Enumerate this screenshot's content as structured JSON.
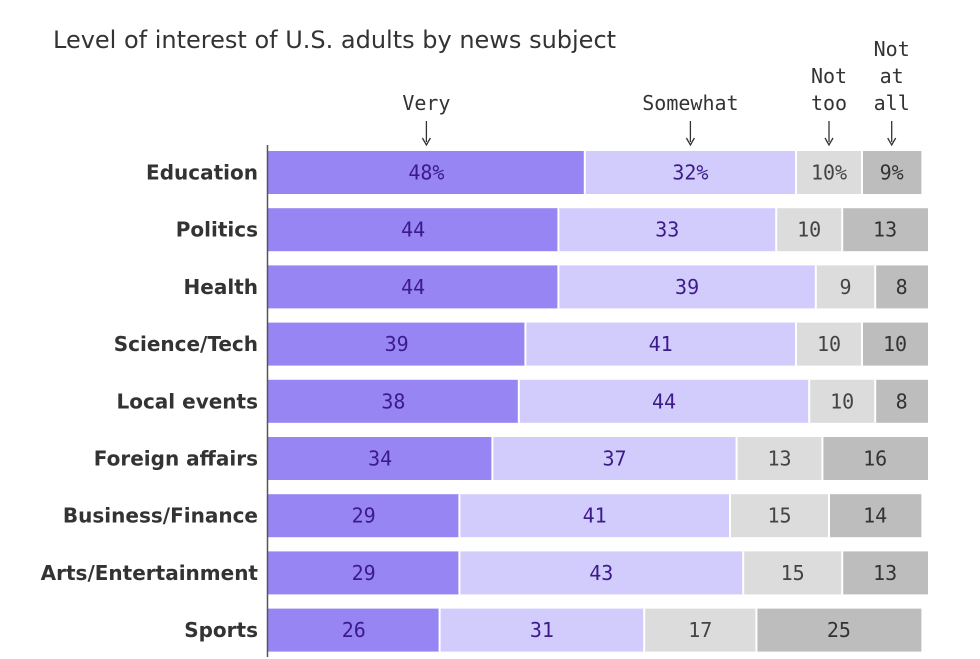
{
  "chart_data": {
    "type": "bar",
    "orientation": "horizontal",
    "stacked": true,
    "title": "Level of interest of U.S. adults by news subject",
    "categories": [
      "Education",
      "Politics",
      "Health",
      "Science/Tech",
      "Local events",
      "Foreign affairs",
      "Business/Finance",
      "Arts/Entertainment",
      "Sports"
    ],
    "series": [
      {
        "name": "Very",
        "header_lines": [
          "Very"
        ],
        "color": "#9685f2",
        "label_color": "#3d1a8a",
        "values": [
          48,
          44,
          44,
          39,
          38,
          34,
          29,
          29,
          26
        ],
        "labels": [
          "48%",
          "44",
          "44",
          "39",
          "38",
          "34",
          "29",
          "29",
          "26"
        ]
      },
      {
        "name": "Somewhat",
        "header_lines": [
          "Somewhat"
        ],
        "color": "#d1ccfc",
        "label_color": "#3d1a8a",
        "values": [
          32,
          33,
          39,
          41,
          44,
          37,
          41,
          43,
          31
        ],
        "labels": [
          "32%",
          "33",
          "39",
          "41",
          "44",
          "37",
          "41",
          "43",
          "31"
        ]
      },
      {
        "name": "Not too",
        "header_lines": [
          "Not",
          "too"
        ],
        "color": "#dcdcdc",
        "label_color": "#444444",
        "values": [
          10,
          10,
          9,
          10,
          10,
          13,
          15,
          15,
          17
        ],
        "labels": [
          "10%",
          "10",
          "9",
          "10",
          "10",
          "13",
          "15",
          "15",
          "17"
        ]
      },
      {
        "name": "Not at all",
        "header_lines": [
          "Not",
          "at",
          "all"
        ],
        "color": "#bdbdbd",
        "label_color": "#333333",
        "values": [
          9,
          13,
          8,
          10,
          8,
          16,
          14,
          13,
          25
        ],
        "labels": [
          "9%",
          "13",
          "8",
          "10",
          "8",
          "16",
          "14",
          "13",
          "25"
        ]
      }
    ],
    "xlim": [
      0,
      100
    ],
    "legend": "top"
  }
}
